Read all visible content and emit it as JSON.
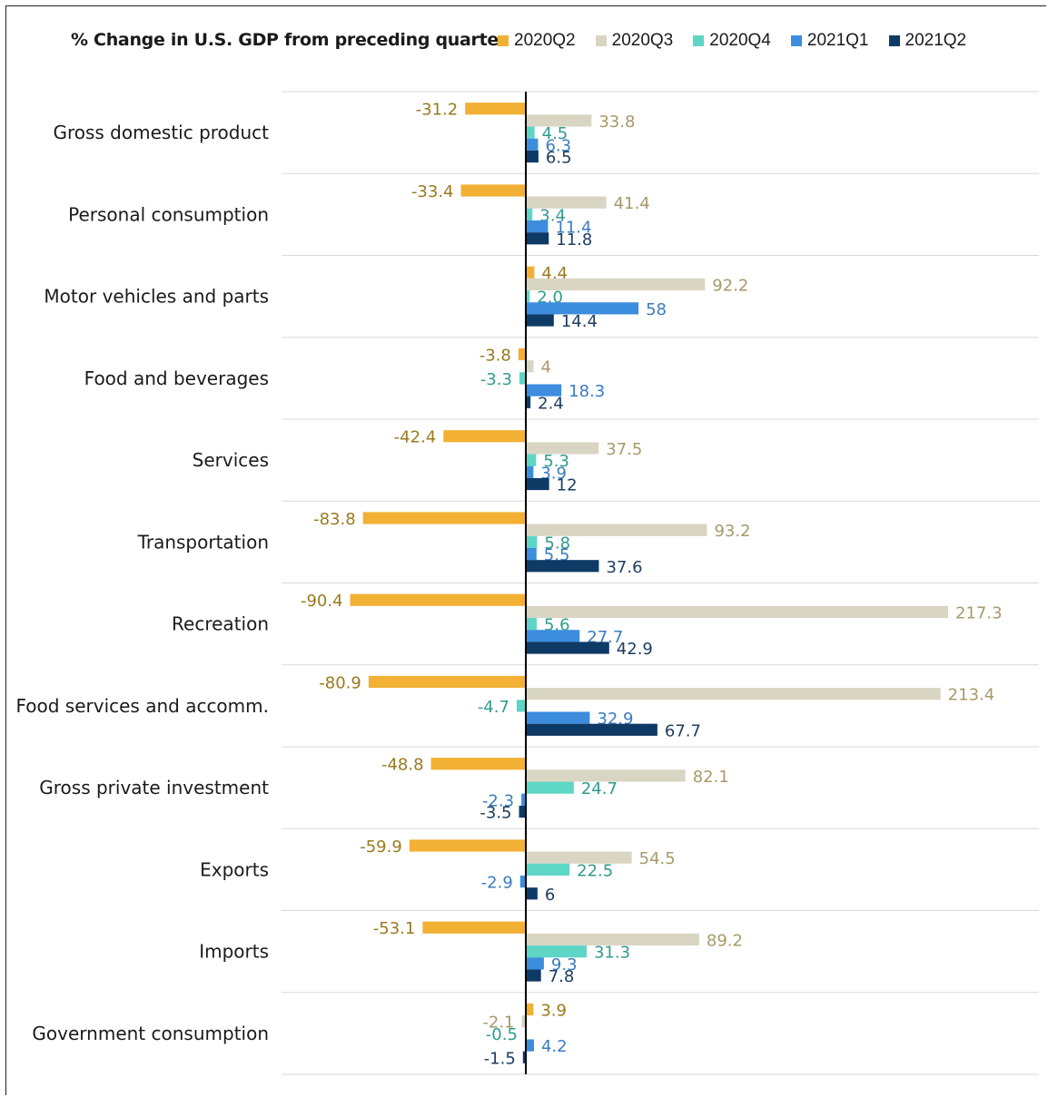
{
  "chart_data": {
    "type": "bar",
    "orientation": "horizontal",
    "title": "% Change in U.S. GDP from preceding quarter",
    "categories": [
      "Gross domestic product",
      "Personal consumption",
      "Motor vehicles and parts",
      "Food and beverages",
      "Services",
      "Transportation",
      "Recreation",
      "Food services and accomm.",
      "Gross private investment",
      "Exports",
      "Imports",
      "Government consumption"
    ],
    "series": [
      {
        "name": "2020Q2",
        "color": "#F2B134",
        "label_color": "#9A7A1E",
        "values": [
          -31.2,
          -33.4,
          4.4,
          -3.8,
          -42.4,
          -83.8,
          -90.4,
          -80.9,
          -48.8,
          -59.9,
          -53.1,
          3.9
        ],
        "labels": [
          "-31.2",
          "-33.4",
          "4.4",
          "-3.8",
          "-42.4",
          "-83.8",
          "-90.4",
          "-80.9",
          "-48.8",
          "-59.9",
          "-53.1",
          "3.9"
        ]
      },
      {
        "name": "2020Q3",
        "color": "#D9D5C3",
        "label_color": "#A69A6A",
        "values": [
          33.8,
          41.4,
          92.2,
          4,
          37.5,
          93.2,
          217.3,
          213.4,
          82.1,
          54.5,
          89.2,
          -2.1
        ],
        "labels": [
          "33.8",
          "41.4",
          "92.2",
          "4",
          "37.5",
          "93.2",
          "217.3",
          "213.4",
          "82.1",
          "54.5",
          "89.2",
          "-2.1"
        ]
      },
      {
        "name": "2020Q4",
        "color": "#5ED6C6",
        "label_color": "#2E9C8E",
        "values": [
          4.5,
          3.4,
          2.0,
          -3.3,
          5.3,
          5.8,
          5.6,
          -4.7,
          24.7,
          22.5,
          31.3,
          -0.5
        ],
        "labels": [
          "4.5",
          "3.4",
          "2.0",
          "-3.3",
          "5.3",
          "5.8",
          "5.6",
          "-4.7",
          "24.7",
          "22.5",
          "31.3",
          "-0.5"
        ]
      },
      {
        "name": "2021Q1",
        "color": "#3C8DDE",
        "label_color": "#3A7CC0",
        "values": [
          6.3,
          11.4,
          58,
          18.3,
          3.9,
          5.5,
          27.7,
          32.9,
          -2.3,
          -2.9,
          9.3,
          4.2
        ],
        "labels": [
          "6.3",
          "11.4",
          "58",
          "18.3",
          "3.9",
          "5.5",
          "27.7",
          "32.9",
          "-2.3",
          "-2.9",
          "9.3",
          "4.2"
        ]
      },
      {
        "name": "2021Q2",
        "color": "#0E3A66",
        "label_color": "#1E3E60",
        "values": [
          6.5,
          11.8,
          14.4,
          2.4,
          12,
          37.6,
          42.9,
          67.7,
          -3.5,
          6,
          7.8,
          -1.5
        ],
        "labels": [
          "6.5",
          "11.8",
          "14.4",
          "2.4",
          "12",
          "37.6",
          "42.9",
          "67.7",
          "-3.5",
          "6",
          "7.8",
          "-1.5"
        ]
      }
    ],
    "legend_position": "top"
  }
}
